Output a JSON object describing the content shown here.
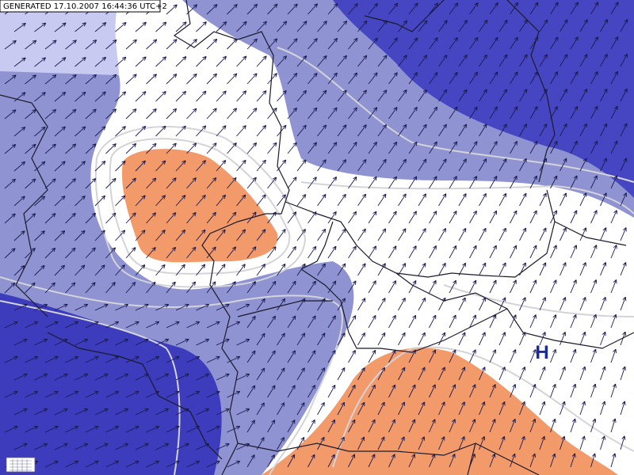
{
  "header": {
    "generated": "GENERATED 17.10.2007 16:44:36 UTC+2"
  },
  "labels": {
    "high": "H"
  }
}
